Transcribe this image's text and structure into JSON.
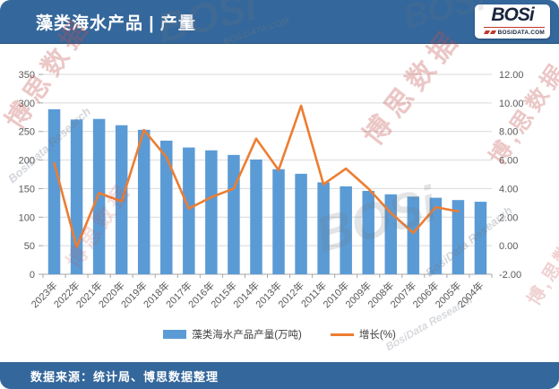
{
  "header": {
    "title": "藻类海水产品 | 产量",
    "logo_text": "BOSi",
    "logo_sub": "BOSIDATA.COM"
  },
  "footer": {
    "source": "数据来源：统计局、博思数据整理"
  },
  "legend": {
    "bar_label": "藻类海水产品产量(万吨)",
    "line_label": "增长(%)"
  },
  "watermarks": {
    "brand_cn": "博思数据",
    "brand_cn_alt": "博,思数据",
    "brand_en": "BOSi",
    "research_en": "BosiData Research",
    "domain_en": "BOSiDATA.COM"
  },
  "colors": {
    "bar": "#5B9BD5",
    "line": "#ED7D31",
    "header_bg": "#34679B",
    "grid": "#D9D9D9",
    "axis_line": "#A6A6A6",
    "axis_text": "#595959"
  },
  "chart_data": {
    "type": "bar",
    "subtype": "combo-bar-line-dual-axis",
    "title": "藻类海水产品 | 产量",
    "categories": [
      "2023年",
      "2022年",
      "2021年",
      "2020年",
      "2019年",
      "2018年",
      "2017年",
      "2016年",
      "2015年",
      "2014年",
      "2013年",
      "2012年",
      "2011年",
      "2010年",
      "2009年",
      "2008年",
      "2007年",
      "2006年",
      "2005年",
      "2004年"
    ],
    "series": [
      {
        "name": "藻类海水产品产量(万吨)",
        "type": "bar",
        "axis": "left",
        "values": [
          289,
          271,
          272,
          261,
          253,
          234,
          222,
          217,
          209,
          201,
          184,
          176,
          161,
          154,
          146,
          140,
          136,
          134,
          130,
          127
        ]
      },
      {
        "name": "增长(%)",
        "type": "line",
        "axis": "right",
        "values": [
          5.8,
          -0.1,
          3.7,
          3.1,
          8.1,
          6.2,
          2.6,
          3.4,
          4.0,
          7.5,
          5.3,
          9.8,
          4.3,
          5.4,
          4.0,
          2.3,
          0.9,
          2.7,
          2.4,
          null
        ]
      }
    ],
    "left_axis": {
      "min": 0,
      "max": 350,
      "step": 50,
      "labels": [
        "0",
        "50",
        "100",
        "150",
        "200",
        "250",
        "300",
        "350"
      ]
    },
    "right_axis": {
      "min": -2,
      "max": 12,
      "step": 2,
      "labels": [
        "-2.00",
        "0.00",
        "2.00",
        "4.00",
        "6.00",
        "8.00",
        "10.00",
        "12.00"
      ]
    },
    "grid": true,
    "legend_position": "bottom"
  }
}
